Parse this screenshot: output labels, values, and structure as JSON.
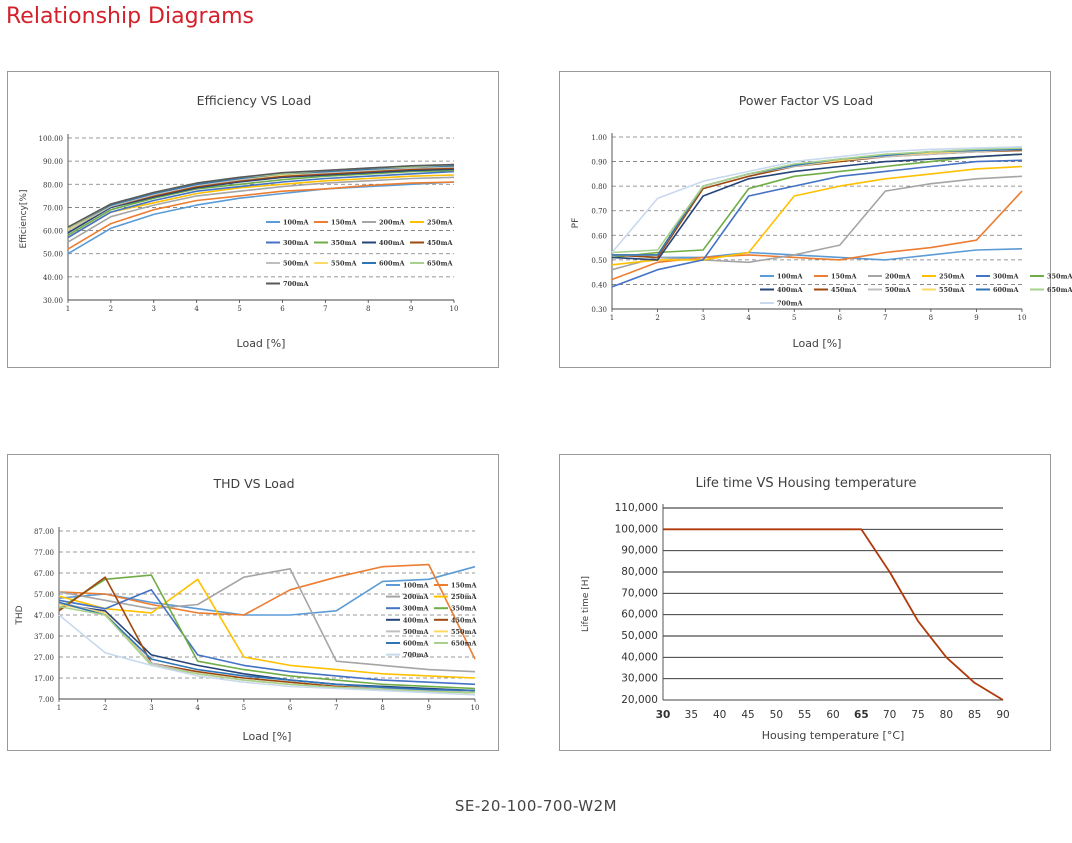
{
  "page": {
    "title": "Relationship Diagrams",
    "footer": "SE-20-100-700-W2M"
  },
  "chart_data": [
    {
      "type": "line",
      "title": "Efficiency VS Load",
      "xlabel": "Load [%]",
      "ylabel": "Efficiency[%]",
      "x": [
        1,
        2,
        3,
        4,
        5,
        6,
        7,
        8,
        9,
        10
      ],
      "x_ticks": [
        "1",
        "2",
        "3",
        "4",
        "5",
        "6",
        "7",
        "8",
        "9",
        "10"
      ],
      "xlim": [
        1,
        10
      ],
      "ylim": [
        30,
        100
      ],
      "y_ticks": [
        "30.00",
        "40.00",
        "50.00",
        "60.00",
        "70.00",
        "80.00",
        "90.00",
        "100.00"
      ],
      "grid": "horizontal-dashed",
      "legend": "inside-right",
      "legend_columns": 4,
      "series": [
        {
          "name": "100mA",
          "color": "#5b9bd5",
          "values": [
            50,
            61,
            67,
            71,
            74,
            76,
            78,
            79,
            80,
            81
          ]
        },
        {
          "name": "150mA",
          "color": "#ed7d31",
          "values": [
            52,
            63,
            69,
            73,
            75,
            77,
            78,
            79.5,
            80.5,
            81
          ]
        },
        {
          "name": "200mA",
          "color": "#a5a5a5",
          "values": [
            55,
            66,
            71,
            75,
            77,
            79,
            80.5,
            81.5,
            82.5,
            83
          ]
        },
        {
          "name": "250mA",
          "color": "#ffc000",
          "values": [
            57,
            68,
            72,
            76,
            78.5,
            80,
            81.5,
            82.5,
            83.5,
            84
          ]
        },
        {
          "name": "300mA",
          "color": "#4472c4",
          "values": [
            57,
            68,
            73,
            77,
            79,
            81,
            82.5,
            83.5,
            84.5,
            85.5
          ]
        },
        {
          "name": "350mA",
          "color": "#70ad47",
          "values": [
            58,
            69,
            74,
            78,
            80,
            82,
            83.5,
            84.5,
            85.5,
            86
          ]
        },
        {
          "name": "400mA",
          "color": "#264478",
          "values": [
            59,
            70,
            74.5,
            78.5,
            81,
            83,
            84,
            85,
            86,
            86.5
          ]
        },
        {
          "name": "450mA",
          "color": "#9e480e",
          "values": [
            60,
            70.5,
            75,
            79,
            81.5,
            83.5,
            84.5,
            85.5,
            86.5,
            87
          ]
        },
        {
          "name": "500mA",
          "color": "#bfbfbf",
          "values": [
            60,
            70.5,
            75.5,
            79.5,
            82,
            84,
            85,
            86,
            87,
            87.5
          ]
        },
        {
          "name": "550mA",
          "color": "#ffd966",
          "values": [
            60.5,
            71,
            76,
            80,
            82.5,
            84,
            85.5,
            86.5,
            87.5,
            88
          ]
        },
        {
          "name": "600mA",
          "color": "#2f75b5",
          "values": [
            61,
            71,
            76,
            80,
            82.5,
            84.5,
            85.5,
            86.5,
            87.5,
            88
          ]
        },
        {
          "name": "650mA",
          "color": "#a9d18e",
          "values": [
            61,
            71.5,
            76.5,
            80.5,
            83,
            84.5,
            86,
            87,
            87.5,
            88.5
          ]
        },
        {
          "name": "700mA",
          "color": "#595959",
          "values": [
            61.5,
            71.5,
            76.5,
            80.5,
            83,
            85,
            86,
            87,
            88,
            88.5
          ]
        }
      ]
    },
    {
      "type": "line",
      "title": "Power Factor VS Load",
      "xlabel": "Load [%]",
      "ylabel": "PF",
      "x": [
        1,
        2,
        3,
        4,
        5,
        6,
        7,
        8,
        9,
        10
      ],
      "x_ticks": [
        "1",
        "2",
        "3",
        "4",
        "5",
        "6",
        "7",
        "8",
        "9",
        "10"
      ],
      "xlim": [
        1,
        10
      ],
      "ylim": [
        0.3,
        1.0
      ],
      "y_ticks": [
        "0.30",
        "0.40",
        "0.50",
        "0.60",
        "0.70",
        "0.80",
        "0.90",
        "1.00"
      ],
      "grid": "horizontal-dashed",
      "legend": "bottom-inside",
      "legend_columns": 6,
      "series": [
        {
          "name": "100mA",
          "color": "#5b9bd5",
          "values": [
            0.52,
            0.51,
            0.51,
            0.53,
            0.52,
            0.51,
            0.5,
            0.52,
            0.54,
            0.545
          ]
        },
        {
          "name": "150mA",
          "color": "#ed7d31",
          "values": [
            0.42,
            0.49,
            0.51,
            0.52,
            0.51,
            0.5,
            0.53,
            0.55,
            0.58,
            0.78
          ]
        },
        {
          "name": "200mA",
          "color": "#a5a5a5",
          "values": [
            0.46,
            0.51,
            0.5,
            0.49,
            0.52,
            0.56,
            0.78,
            0.81,
            0.83,
            0.84
          ]
        },
        {
          "name": "250mA",
          "color": "#ffc000",
          "values": [
            0.48,
            0.5,
            0.5,
            0.53,
            0.76,
            0.8,
            0.83,
            0.85,
            0.87,
            0.88
          ]
        },
        {
          "name": "300mA",
          "color": "#4472c4",
          "values": [
            0.39,
            0.46,
            0.5,
            0.76,
            0.8,
            0.84,
            0.86,
            0.88,
            0.9,
            0.905
          ]
        },
        {
          "name": "350mA",
          "color": "#70ad47",
          "values": [
            0.51,
            0.53,
            0.54,
            0.79,
            0.84,
            0.86,
            0.88,
            0.9,
            0.92,
            0.93
          ]
        },
        {
          "name": "400mA",
          "color": "#264478",
          "values": [
            0.51,
            0.5,
            0.76,
            0.83,
            0.86,
            0.88,
            0.9,
            0.91,
            0.92,
            0.93
          ]
        },
        {
          "name": "450mA",
          "color": "#9e480e",
          "values": [
            0.52,
            0.51,
            0.79,
            0.84,
            0.88,
            0.9,
            0.92,
            0.93,
            0.94,
            0.945
          ]
        },
        {
          "name": "500mA",
          "color": "#bfbfbf",
          "values": [
            0.52,
            0.52,
            0.8,
            0.85,
            0.88,
            0.905,
            0.92,
            0.93,
            0.94,
            0.95
          ]
        },
        {
          "name": "550mA",
          "color": "#ffd966",
          "values": [
            0.52,
            0.52,
            0.8,
            0.85,
            0.885,
            0.905,
            0.925,
            0.935,
            0.945,
            0.95
          ]
        },
        {
          "name": "600mA",
          "color": "#2f75b5",
          "values": [
            0.52,
            0.52,
            0.8,
            0.85,
            0.885,
            0.91,
            0.925,
            0.94,
            0.945,
            0.95
          ]
        },
        {
          "name": "650mA",
          "color": "#a9d18e",
          "values": [
            0.53,
            0.54,
            0.8,
            0.85,
            0.89,
            0.91,
            0.93,
            0.94,
            0.95,
            0.955
          ]
        },
        {
          "name": "700mA",
          "color": "#c9d9ee",
          "values": [
            0.53,
            0.75,
            0.82,
            0.86,
            0.9,
            0.92,
            0.94,
            0.95,
            0.955,
            0.96
          ]
        }
      ]
    },
    {
      "type": "line",
      "title": "THD VS Load",
      "xlabel": "Load [%]",
      "ylabel": "THD",
      "x": [
        1,
        2,
        3,
        4,
        5,
        6,
        7,
        8,
        9,
        10
      ],
      "x_ticks": [
        "1",
        "2",
        "3",
        "4",
        "5",
        "6",
        "7",
        "8",
        "9",
        "10"
      ],
      "xlim": [
        1,
        10
      ],
      "ylim": [
        7,
        87
      ],
      "y_ticks": [
        "7.00",
        "17.00",
        "27.00",
        "37.00",
        "47.00",
        "57.00",
        "67.00",
        "77.00",
        "87.00"
      ],
      "grid": "horizontal-dashed",
      "legend": "right-inside",
      "legend_columns": 2,
      "series": [
        {
          "name": "100mA",
          "color": "#5b9bd5",
          "values": [
            55,
            57,
            53,
            50,
            47,
            47,
            49,
            63,
            64,
            70
          ]
        },
        {
          "name": "150mA",
          "color": "#ed7d31",
          "values": [
            58,
            57,
            52,
            48,
            47,
            59,
            65,
            70,
            71,
            26
          ]
        },
        {
          "name": "200mA",
          "color": "#a5a5a5",
          "values": [
            58,
            54,
            50,
            52,
            65,
            69,
            25,
            23,
            21,
            20
          ]
        },
        {
          "name": "250mA",
          "color": "#ffc000",
          "values": [
            56,
            50,
            48,
            64,
            27,
            23,
            21,
            19,
            18,
            17
          ]
        },
        {
          "name": "300mA",
          "color": "#4472c4",
          "values": [
            54,
            50,
            59,
            28,
            23,
            20,
            18,
            16,
            15,
            14
          ]
        },
        {
          "name": "350mA",
          "color": "#70ad47",
          "values": [
            50,
            64,
            66,
            25,
            21,
            18,
            16,
            14,
            13,
            12
          ]
        },
        {
          "name": "400mA",
          "color": "#264478",
          "values": [
            52,
            49,
            28,
            23,
            19,
            16,
            14,
            13,
            12,
            11
          ]
        },
        {
          "name": "450mA",
          "color": "#9e480e",
          "values": [
            49,
            65,
            24,
            20,
            17,
            15,
            13,
            12,
            11,
            10
          ]
        },
        {
          "name": "500mA",
          "color": "#bfbfbf",
          "values": [
            53,
            48,
            24,
            19,
            16,
            14,
            12.5,
            12,
            11,
            10
          ]
        },
        {
          "name": "550mA",
          "color": "#ffd966",
          "values": [
            52,
            48,
            23,
            19,
            16,
            14,
            12.5,
            11.5,
            10.5,
            10
          ]
        },
        {
          "name": "600mA",
          "color": "#2f75b5",
          "values": [
            53,
            47,
            26,
            21,
            18,
            16,
            14,
            12.5,
            11.5,
            11
          ]
        },
        {
          "name": "650mA",
          "color": "#a9d18e",
          "values": [
            51,
            47,
            23,
            19,
            16,
            14,
            12.5,
            11.5,
            10.5,
            10
          ]
        },
        {
          "name": "700mA",
          "color": "#c9d9ee",
          "values": [
            47,
            29,
            23,
            18,
            15,
            13,
            12,
            11,
            10,
            9
          ]
        }
      ]
    },
    {
      "type": "line",
      "title": "Life time VS Housing temperature",
      "xlabel": "Housing temperature [°C]",
      "ylabel": "Life time [H]",
      "x": [
        30,
        35,
        40,
        45,
        50,
        55,
        60,
        65,
        70,
        75,
        80,
        85,
        90
      ],
      "x_ticks": [
        "30",
        "35",
        "40",
        "45",
        "50",
        "55",
        "60",
        "65",
        "70",
        "75",
        "80",
        "85",
        "90"
      ],
      "bold_x_ticks": [
        "30",
        "65"
      ],
      "xlim": [
        30,
        90
      ],
      "ylim": [
        20000,
        110000
      ],
      "y_ticks": [
        "20,000",
        "30,000",
        "40,000",
        "50,000",
        "60,000",
        "70,000",
        "80,000",
        "90,000",
        "100,000",
        "110,000"
      ],
      "grid": "horizontal-solid",
      "series": [
        {
          "color": "#b03a0b",
          "values": [
            100000,
            100000,
            100000,
            100000,
            100000,
            100000,
            100000,
            100000,
            80000,
            57000,
            40000,
            28000,
            20000
          ]
        }
      ]
    }
  ]
}
